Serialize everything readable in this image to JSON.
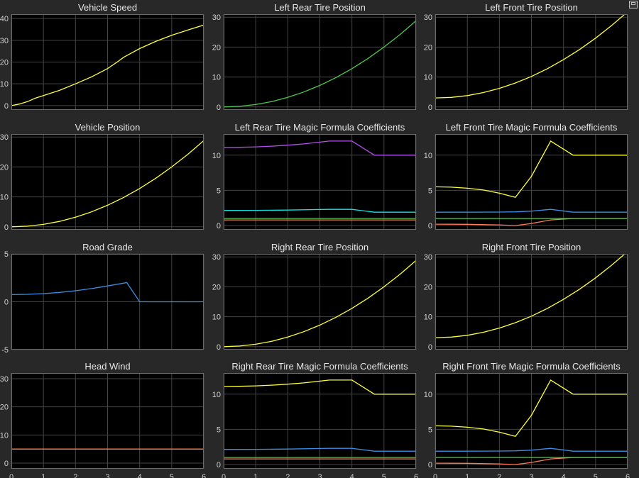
{
  "window": {
    "undock_icon": "undock-icon"
  },
  "colors": {
    "yellow": "#ffff3c",
    "green": "#4fc94b",
    "purple": "#b54ef0",
    "cyan": "#12e5e5",
    "blue": "#3a8fe6",
    "orange": "#ff7b55",
    "axes_bg": "#000000",
    "grid": "#444444",
    "figure_bg": "#282828"
  },
  "chart_data": [
    {
      "type": "line",
      "title": "Vehicle Speed",
      "xlim": [
        0,
        6
      ],
      "ylim": [
        -2,
        42
      ],
      "yticks": [
        0,
        10,
        20,
        30,
        40
      ],
      "xticks": [],
      "grid": true,
      "series": [
        {
          "color": "#ffff3c",
          "x": [
            0,
            0.25,
            0.5,
            0.75,
            1,
            1.5,
            2,
            2.5,
            3,
            3.3,
            3.5,
            3.6,
            4,
            4.5,
            5,
            5.5,
            6
          ],
          "y": [
            0,
            0.7,
            1.8,
            3.4,
            4.6,
            7.0,
            10.0,
            13.2,
            17.0,
            20.0,
            22.2,
            23.0,
            26.2,
            29.5,
            32.3,
            34.7,
            37.0
          ]
        }
      ]
    },
    {
      "type": "line",
      "title": "Left Rear Tire Position",
      "xlim": [
        0,
        6
      ],
      "ylim": [
        -1,
        31
      ],
      "yticks": [
        0,
        10,
        20,
        30
      ],
      "xticks": [],
      "grid": true,
      "series": [
        {
          "color": "#4fc94b",
          "x": [
            0,
            0.5,
            1,
            1.5,
            2,
            2.5,
            3,
            3.5,
            4,
            4.5,
            5,
            5.5,
            6
          ],
          "y": [
            0,
            0.2,
            0.8,
            1.8,
            3.2,
            5.0,
            7.2,
            9.8,
            12.8,
            16.2,
            20.0,
            24.2,
            28.8
          ]
        }
      ]
    },
    {
      "type": "line",
      "title": "Left Front Tire Position",
      "xlim": [
        0,
        6
      ],
      "ylim": [
        -1,
        31
      ],
      "yticks": [
        0,
        10,
        20,
        30
      ],
      "xticks": [],
      "grid": true,
      "series": [
        {
          "color": "#ffff3c",
          "x": [
            0,
            0.5,
            1,
            1.5,
            2,
            2.5,
            3,
            3.5,
            4,
            4.5,
            5,
            5.5,
            6
          ],
          "y": [
            3,
            3.2,
            3.8,
            4.8,
            6.2,
            8.0,
            10.2,
            12.8,
            15.8,
            19.2,
            23.0,
            27.2,
            31.8
          ]
        }
      ]
    },
    {
      "type": "line",
      "title": "Vehicle Position",
      "xlim": [
        0,
        6
      ],
      "ylim": [
        -1,
        31
      ],
      "yticks": [
        0,
        10,
        20,
        30
      ],
      "xticks": [],
      "grid": true,
      "series": [
        {
          "color": "#ffff3c",
          "x": [
            0,
            0.5,
            1,
            1.5,
            2,
            2.5,
            3,
            3.5,
            4,
            4.5,
            5,
            5.5,
            6
          ],
          "y": [
            0,
            0.2,
            0.8,
            1.8,
            3.2,
            5.0,
            7.2,
            9.8,
            12.8,
            16.2,
            20.0,
            24.2,
            28.8
          ]
        }
      ]
    },
    {
      "type": "line",
      "title": "Left Rear Tire Magic Formula Coefficients",
      "xlim": [
        0,
        6
      ],
      "ylim": [
        -0.6,
        13
      ],
      "yticks": [
        0,
        5,
        10
      ],
      "xticks": [],
      "grid": true,
      "series": [
        {
          "color": "#b54ef0",
          "x": [
            0,
            0.5,
            1,
            1.5,
            2,
            2.5,
            3,
            3.3,
            4,
            4.7,
            5,
            6
          ],
          "y": [
            11.1,
            11.12,
            11.18,
            11.28,
            11.42,
            11.6,
            11.85,
            12.0,
            12.0,
            10.0,
            10.0,
            10.0
          ]
        },
        {
          "color": "#12e5e5",
          "x": [
            0,
            1,
            2,
            3,
            3.3,
            4,
            4.7,
            5,
            6
          ],
          "y": [
            2.15,
            2.16,
            2.2,
            2.28,
            2.3,
            2.3,
            1.9,
            1.9,
            1.9
          ]
        },
        {
          "color": "#ff7b55",
          "x": [
            0,
            4.7,
            6
          ],
          "y": [
            0.8,
            0.8,
            0.8
          ]
        },
        {
          "color": "#4fc94b",
          "x": [
            0,
            4.6,
            4.7,
            6
          ],
          "y": [
            1.0,
            1.0,
            1.0,
            1.0
          ]
        }
      ]
    },
    {
      "type": "line",
      "title": "Left Front Tire Magic Formula Coefficients",
      "xlim": [
        0,
        6
      ],
      "ylim": [
        -0.6,
        13
      ],
      "yticks": [
        0,
        5,
        10
      ],
      "xticks": [],
      "grid": true,
      "series": [
        {
          "color": "#ffff3c",
          "x": [
            0,
            0.5,
            1,
            1.5,
            2,
            2.5,
            3,
            3.6,
            4.3,
            5,
            6
          ],
          "y": [
            5.5,
            5.45,
            5.3,
            5.05,
            4.6,
            4.0,
            7.0,
            12.0,
            10.0,
            10.0,
            10.0
          ]
        },
        {
          "color": "#3a8fe6",
          "x": [
            0,
            1,
            2,
            2.5,
            3,
            3.6,
            4.3,
            5,
            6
          ],
          "y": [
            1.9,
            1.9,
            1.92,
            1.95,
            2.05,
            2.3,
            1.9,
            1.9,
            1.9
          ]
        },
        {
          "color": "#ff7b55",
          "x": [
            0,
            1,
            2,
            2.5,
            3,
            3.6,
            4.3,
            6
          ],
          "y": [
            0.2,
            0.18,
            0.1,
            0.0,
            0.3,
            0.8,
            1.0,
            1.0
          ]
        },
        {
          "color": "#4fc94b",
          "x": [
            0,
            6
          ],
          "y": [
            1.0,
            1.0
          ]
        }
      ]
    },
    {
      "type": "line",
      "title": "Road Grade",
      "xlim": [
        0,
        6
      ],
      "ylim": [
        -5,
        5
      ],
      "yticks": [
        -5,
        0,
        5
      ],
      "xticks": [],
      "grid": true,
      "series": [
        {
          "color": "#3a8fe6",
          "x": [
            0,
            0.5,
            1,
            1.5,
            2,
            2.5,
            3,
            3.6,
            4,
            6
          ],
          "y": [
            0.75,
            0.78,
            0.85,
            0.98,
            1.15,
            1.38,
            1.65,
            2.0,
            0,
            0
          ]
        }
      ]
    },
    {
      "type": "line",
      "title": "Right Rear Tire Position",
      "xlim": [
        0,
        6
      ],
      "ylim": [
        -1,
        31
      ],
      "yticks": [
        0,
        10,
        20,
        30
      ],
      "xticks": [],
      "grid": true,
      "series": [
        {
          "color": "#ffff3c",
          "x": [
            0,
            0.5,
            1,
            1.5,
            2,
            2.5,
            3,
            3.5,
            4,
            4.5,
            5,
            5.5,
            6
          ],
          "y": [
            0,
            0.2,
            0.8,
            1.8,
            3.2,
            5.0,
            7.2,
            9.8,
            12.8,
            16.2,
            20.0,
            24.2,
            28.8
          ]
        }
      ]
    },
    {
      "type": "line",
      "title": "Right Front Tire Position",
      "xlim": [
        0,
        6
      ],
      "ylim": [
        -1,
        31
      ],
      "yticks": [
        0,
        10,
        20,
        30
      ],
      "xticks": [],
      "grid": true,
      "series": [
        {
          "color": "#ffff3c",
          "x": [
            0,
            0.5,
            1,
            1.5,
            2,
            2.5,
            3,
            3.5,
            4,
            4.5,
            5,
            5.5,
            6
          ],
          "y": [
            3,
            3.2,
            3.8,
            4.8,
            6.2,
            8.0,
            10.2,
            12.8,
            15.8,
            19.2,
            23.0,
            27.2,
            31.8
          ]
        }
      ]
    },
    {
      "type": "line",
      "title": "Head Wind",
      "xlim": [
        0,
        6
      ],
      "ylim": [
        -2,
        32
      ],
      "yticks": [
        0,
        10,
        20,
        30
      ],
      "xticks": [
        0,
        1,
        2,
        3,
        4,
        5,
        6
      ],
      "grid": true,
      "series": [
        {
          "color": "#ff7b55",
          "x": [
            0,
            6
          ],
          "y": [
            5,
            5
          ]
        }
      ]
    },
    {
      "type": "line",
      "title": "Right Rear Tire Magic Formula Coefficients",
      "xlim": [
        0,
        6
      ],
      "ylim": [
        -0.6,
        13
      ],
      "yticks": [
        0,
        5,
        10
      ],
      "xticks": [
        0,
        1,
        2,
        3,
        4,
        5,
        6
      ],
      "grid": true,
      "series": [
        {
          "color": "#ffff3c",
          "x": [
            0,
            0.5,
            1,
            1.5,
            2,
            2.5,
            3,
            3.3,
            4,
            4.7,
            5,
            6
          ],
          "y": [
            11.1,
            11.12,
            11.18,
            11.28,
            11.42,
            11.6,
            11.85,
            12.0,
            12.0,
            10.0,
            10.0,
            10.0
          ]
        },
        {
          "color": "#3a8fe6",
          "x": [
            0,
            1,
            2,
            3,
            3.3,
            4,
            4.7,
            5,
            6
          ],
          "y": [
            2.15,
            2.16,
            2.2,
            2.28,
            2.3,
            2.3,
            1.9,
            1.9,
            1.9
          ]
        },
        {
          "color": "#ff7b55",
          "x": [
            0,
            4.7,
            6
          ],
          "y": [
            0.8,
            0.8,
            0.8
          ]
        },
        {
          "color": "#4fc94b",
          "x": [
            0,
            6
          ],
          "y": [
            1.0,
            1.0
          ]
        }
      ]
    },
    {
      "type": "line",
      "title": "Right Front Tire Magic Formula Coefficients",
      "xlim": [
        0,
        6
      ],
      "ylim": [
        -0.6,
        13
      ],
      "yticks": [
        0,
        5,
        10
      ],
      "xticks": [
        0,
        1,
        2,
        3,
        4,
        5,
        6
      ],
      "grid": true,
      "series": [
        {
          "color": "#ffff3c",
          "x": [
            0,
            0.5,
            1,
            1.5,
            2,
            2.5,
            3,
            3.6,
            4.3,
            5,
            6
          ],
          "y": [
            5.5,
            5.45,
            5.3,
            5.05,
            4.6,
            4.0,
            7.0,
            12.0,
            10.0,
            10.0,
            10.0
          ]
        },
        {
          "color": "#3a8fe6",
          "x": [
            0,
            1,
            2,
            2.5,
            3,
            3.6,
            4.3,
            5,
            6
          ],
          "y": [
            1.9,
            1.9,
            1.92,
            1.95,
            2.05,
            2.3,
            1.9,
            1.9,
            1.9
          ]
        },
        {
          "color": "#ff7b55",
          "x": [
            0,
            1,
            2,
            2.5,
            3,
            3.6,
            4.3,
            6
          ],
          "y": [
            0.2,
            0.18,
            0.1,
            0.0,
            0.3,
            0.8,
            1.0,
            1.0
          ]
        },
        {
          "color": "#4fc94b",
          "x": [
            0,
            6
          ],
          "y": [
            1.0,
            1.0
          ]
        }
      ]
    }
  ]
}
